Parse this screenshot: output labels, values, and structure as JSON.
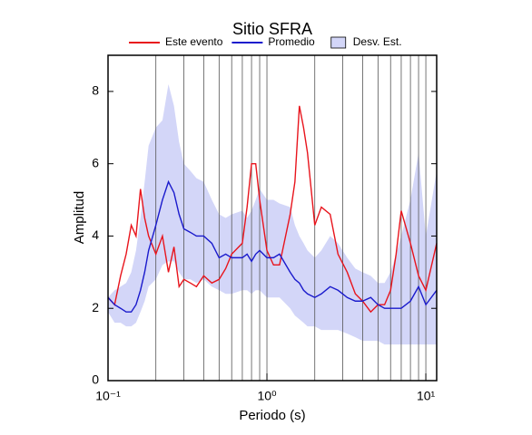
{
  "chart_data": {
    "type": "band-line",
    "title": "Sitio SFRA",
    "x_label": "Periodo (s)",
    "y_label": "Amplitud",
    "xscale": "log",
    "xlim": [
      0.1,
      11.7
    ],
    "ylim": [
      0,
      9
    ],
    "xticks": [
      {
        "value": 0.1,
        "label": "10⁻¹"
      },
      {
        "value": 1,
        "label": "10⁰"
      },
      {
        "value": 10,
        "label": "10¹"
      }
    ],
    "xgridticks": [
      0.2,
      0.3,
      0.4,
      0.5,
      0.6,
      0.7,
      0.8,
      0.9,
      1,
      2,
      3,
      4,
      5,
      6,
      7,
      8,
      9,
      10
    ],
    "yticks": [
      0,
      2,
      4,
      6,
      8
    ],
    "x": [
      0.1,
      0.11,
      0.12,
      0.13,
      0.14,
      0.15,
      0.16,
      0.17,
      0.18,
      0.2,
      0.22,
      0.24,
      0.26,
      0.28,
      0.3,
      0.33,
      0.36,
      0.4,
      0.45,
      0.5,
      0.55,
      0.6,
      0.7,
      0.75,
      0.8,
      0.85,
      0.9,
      1.0,
      1.1,
      1.2,
      1.4,
      1.5,
      1.6,
      1.7,
      1.8,
      2.0,
      2.2,
      2.5,
      2.8,
      3.2,
      3.6,
      4.0,
      4.5,
      5,
      5.5,
      6,
      6.5,
      7,
      8,
      9,
      10,
      11.7
    ],
    "band": {
      "name": "Desv. Est.",
      "color": "#d3d6f8",
      "upper": [
        2.3,
        2.5,
        2.6,
        2.7,
        3.0,
        3.6,
        4.5,
        5.5,
        6.5,
        7.0,
        7.2,
        8.2,
        7.6,
        6.6,
        6.0,
        5.8,
        5.6,
        5.5,
        5.0,
        4.6,
        4.5,
        4.6,
        4.7,
        4.5,
        4.7,
        5.0,
        5.3,
        5.0,
        5.0,
        4.9,
        4.8,
        4.3,
        4.0,
        3.8,
        3.6,
        3.4,
        3.6,
        4.0,
        3.8,
        3.4,
        3.1,
        3.0,
        2.9,
        2.7,
        2.7,
        3.0,
        3.5,
        4.0,
        5.0,
        6.3,
        4.0,
        5.8
      ],
      "lower": [
        1.9,
        1.6,
        1.6,
        1.5,
        1.5,
        1.6,
        1.9,
        2.2,
        2.6,
        2.8,
        3.2,
        3.3,
        3.3,
        3.0,
        2.8,
        2.8,
        2.7,
        2.8,
        2.6,
        2.5,
        2.4,
        2.4,
        2.5,
        2.5,
        2.4,
        2.5,
        2.5,
        2.3,
        2.3,
        2.3,
        2.0,
        1.8,
        1.7,
        1.6,
        1.5,
        1.5,
        1.4,
        1.4,
        1.4,
        1.3,
        1.2,
        1.1,
        1.1,
        1.1,
        1.0,
        1.0,
        1.0,
        1.0,
        1.0,
        1.0,
        1.0,
        1.0
      ]
    },
    "series": [
      {
        "name": "Este evento",
        "color": "#e8141c",
        "values": [
          2.3,
          2.1,
          2.9,
          3.5,
          4.3,
          4.0,
          5.3,
          4.5,
          4.0,
          3.5,
          4.0,
          3.0,
          3.7,
          2.6,
          2.8,
          2.7,
          2.6,
          2.9,
          2.7,
          2.8,
          3.1,
          3.5,
          3.8,
          4.8,
          6.0,
          6.0,
          5.0,
          3.6,
          3.2,
          3.2,
          4.6,
          5.5,
          7.6,
          7.0,
          6.3,
          4.3,
          4.8,
          4.6,
          3.5,
          3.0,
          2.4,
          2.2,
          1.9,
          2.1,
          2.1,
          2.5,
          3.5,
          4.7,
          3.8,
          2.9,
          2.5,
          3.8
        ]
      },
      {
        "name": "Promedio",
        "color": "#1a1acc",
        "values": [
          2.3,
          2.1,
          2.0,
          1.9,
          1.9,
          2.1,
          2.5,
          3.0,
          3.6,
          4.3,
          5.0,
          5.5,
          5.2,
          4.6,
          4.2,
          4.1,
          4.0,
          4.0,
          3.8,
          3.4,
          3.5,
          3.4,
          3.4,
          3.5,
          3.3,
          3.5,
          3.6,
          3.4,
          3.4,
          3.5,
          3.0,
          2.8,
          2.7,
          2.5,
          2.4,
          2.3,
          2.4,
          2.6,
          2.5,
          2.3,
          2.2,
          2.2,
          2.3,
          2.1,
          2.0,
          2.0,
          2.0,
          2.0,
          2.2,
          2.6,
          2.1,
          2.5
        ]
      }
    ]
  }
}
